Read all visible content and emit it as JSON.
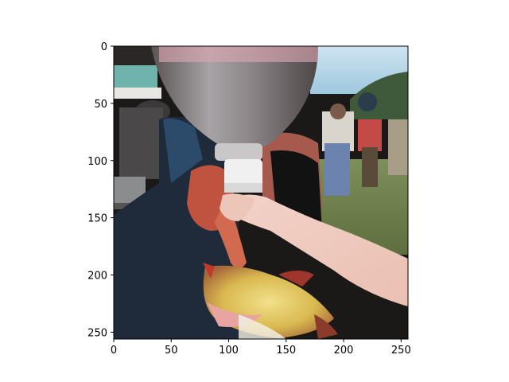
{
  "figure": {
    "image_description_name": "generated-photo-person-drinking-from-bottle",
    "colors": {
      "axes_frame": "#000000",
      "background": "#ffffff"
    }
  },
  "axes": {
    "x_ticks": [
      "0",
      "50",
      "100",
      "150",
      "200",
      "250"
    ],
    "y_ticks": [
      "0",
      "50",
      "100",
      "150",
      "200",
      "250"
    ],
    "x_range": [
      0,
      256
    ],
    "y_range": [
      0,
      256
    ]
  }
}
